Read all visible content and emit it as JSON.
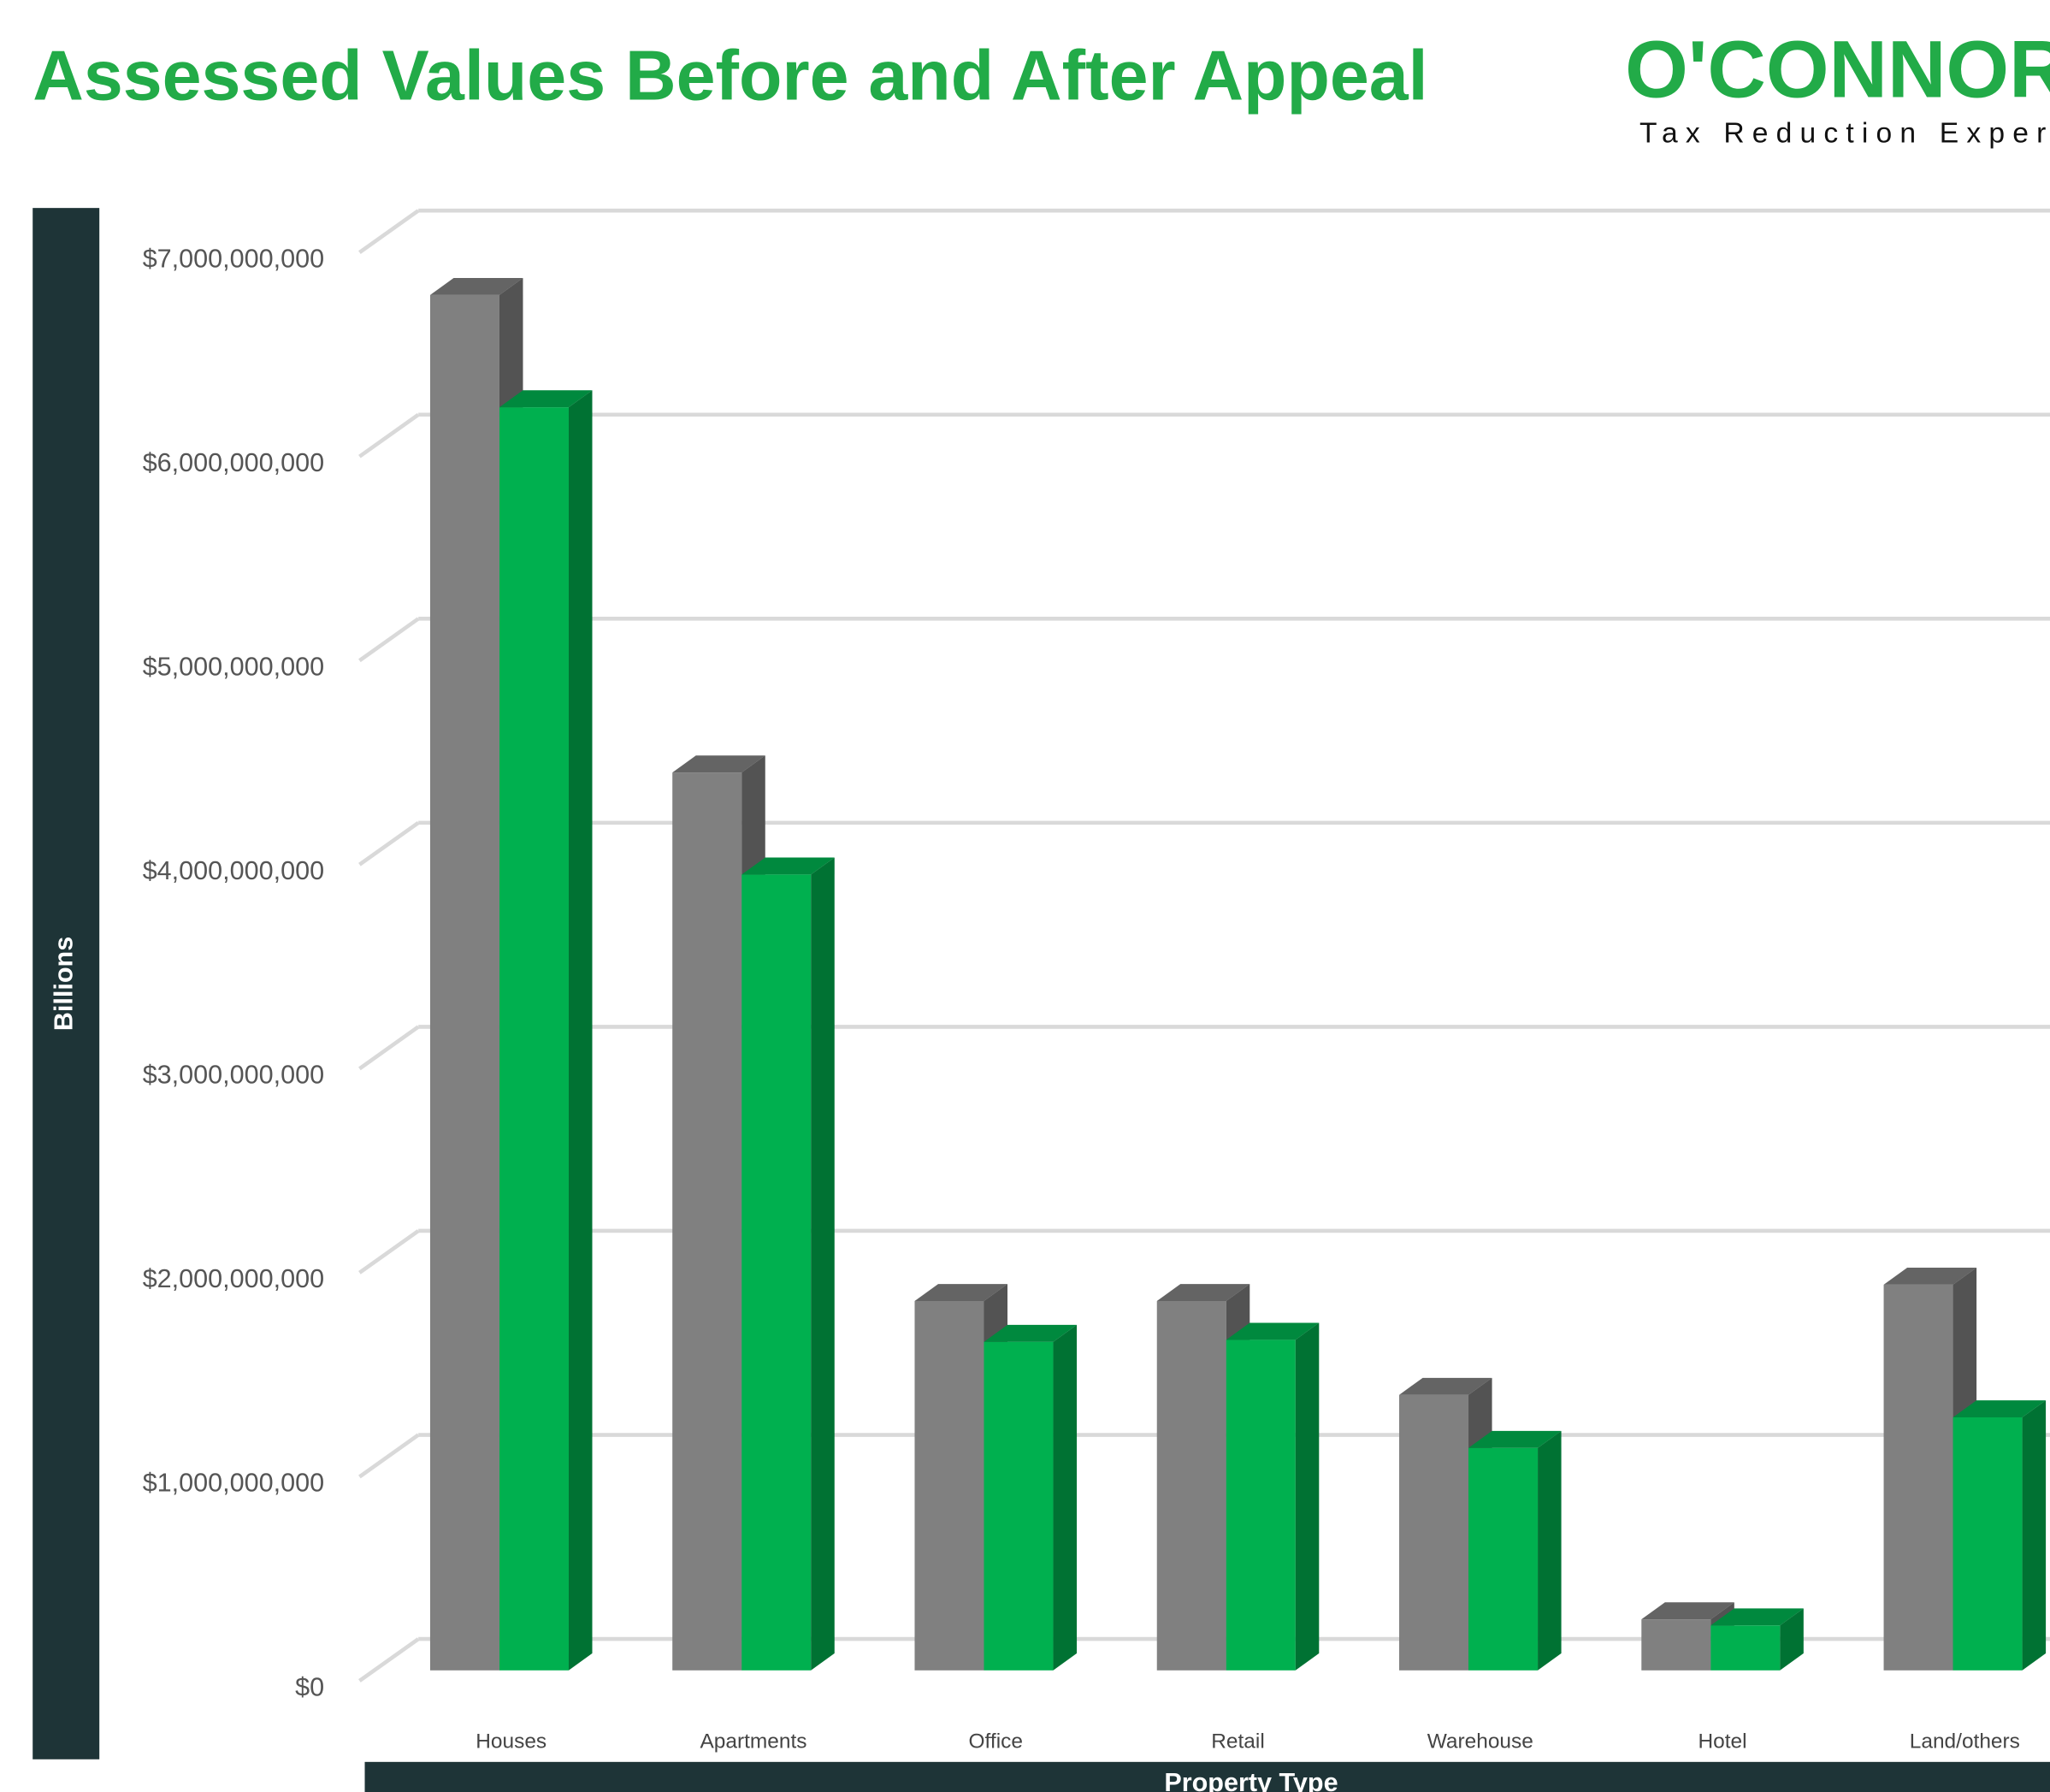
{
  "chart_data": {
    "type": "bar3d",
    "title": "Assessed Values Before and After Appeal",
    "logo": {
      "name": "O'CONNOR",
      "tagline": "Tax Reduction Experts"
    },
    "y_label": "Billions",
    "x_label": "Property Type",
    "categories": [
      "Houses",
      "Apartments",
      "Office",
      "Retail",
      "Warehouse",
      "Hotel",
      "Land/others"
    ],
    "series": [
      {
        "color": "#808080",
        "values": [
          6740000000,
          4400000000,
          1810000000,
          1810000000,
          1350000000,
          250000000,
          1890000000
        ]
      },
      {
        "color": "#00b04f",
        "values": [
          6190000000,
          3900000000,
          1610000000,
          1620000000,
          1090000000,
          220000000,
          1240000000
        ]
      }
    ],
    "ylim": [
      0,
      7000000000
    ],
    "yticks": [
      {
        "value": 0,
        "label": "$0"
      },
      {
        "value": 1000000000,
        "label": "$1,000,000,000"
      },
      {
        "value": 2000000000,
        "label": "$2,000,000,000"
      },
      {
        "value": 3000000000,
        "label": "$3,000,000,000"
      },
      {
        "value": 4000000000,
        "label": "$4,000,000,000"
      },
      {
        "value": 5000000000,
        "label": "$5,000,000,000"
      },
      {
        "value": 6000000000,
        "label": "$6,000,000,000"
      },
      {
        "value": 7000000000,
        "label": "$7,000,000,000"
      }
    ],
    "grid": true
  }
}
